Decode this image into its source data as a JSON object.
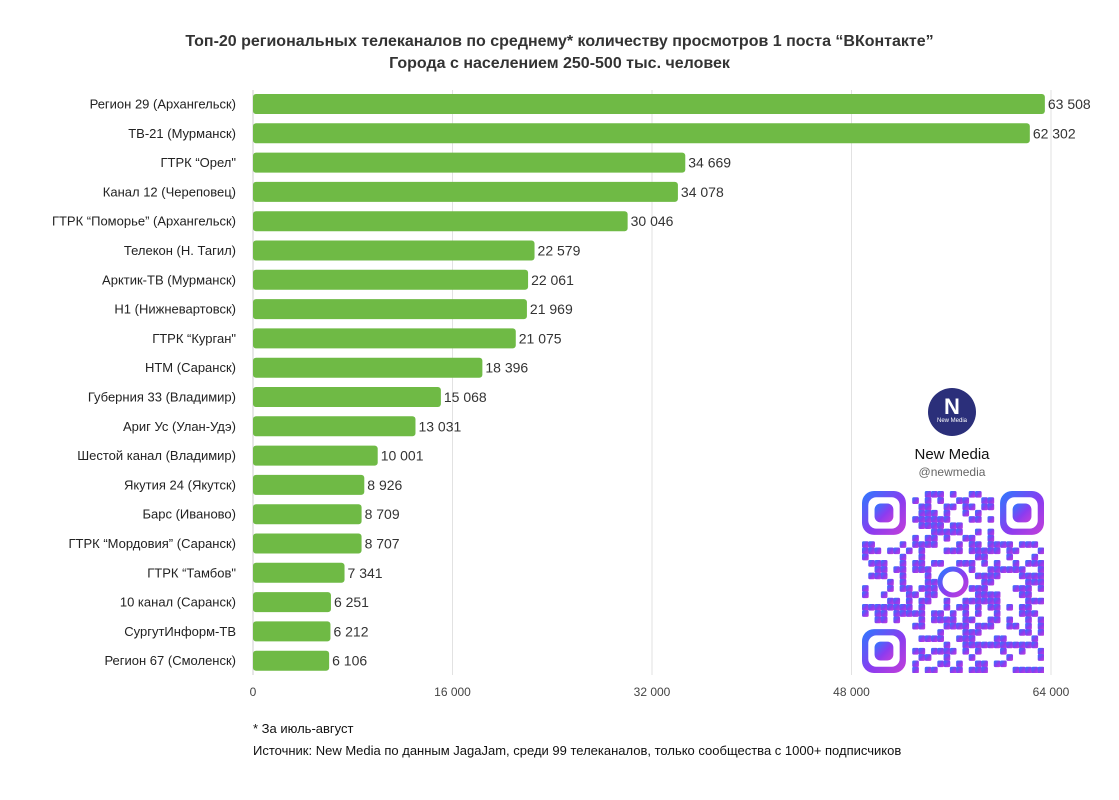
{
  "chart_data": {
    "type": "bar",
    "orientation": "horizontal",
    "title": "Топ-20 региональных телеканалов по среднему* количеству просмотров 1 поста “ВКонтакте”",
    "subtitle": "Города с населением 250-500 тыс. человек",
    "categories": [
      "Регион 29 (Архангельск)",
      "ТВ-21 (Мурманск)",
      "ГТРК “Орел\"",
      "Канал 12 (Череповец)",
      "ГТРК “Поморье” (Архангельск)",
      "Телекон (Н. Тагил)",
      "Арктик-ТВ (Мурманск)",
      "Н1 (Нижневартовск)",
      "ГТРК “Курган\"",
      "НТМ (Саранск)",
      "Губерния 33 (Владимир)",
      "Ариг Ус (Улан-Удэ)",
      "Шестой канал (Владимир)",
      "Якутия 24 (Якутск)",
      "Барс (Иваново)",
      "ГТРК “Мордовия” (Саранск)",
      "ГТРК “Тамбов\"",
      "10 канал (Саранск)",
      "СургутИнформ-ТВ",
      "Регион 67 (Смоленск)"
    ],
    "values": [
      63508,
      62302,
      34669,
      34078,
      30046,
      22579,
      22061,
      21969,
      21075,
      18396,
      15068,
      13031,
      10001,
      8926,
      8709,
      8707,
      7341,
      6251,
      6212,
      6106
    ],
    "value_labels": [
      "63 508",
      "62 302",
      "34 669",
      "34 078",
      "30 046",
      "22 579",
      "22 061",
      "21 969",
      "21 075",
      "18 396",
      "15 068",
      "13 031",
      "10 001",
      "8 926",
      "8 709",
      "8 707",
      "7 341",
      "6 251",
      "6 212",
      "6 106"
    ],
    "xlim": [
      0,
      64000
    ],
    "xticks": [
      0,
      16000,
      32000,
      48000,
      64000
    ],
    "xtick_labels": [
      "0",
      "16 000",
      "32 000",
      "48 000",
      "64 000"
    ],
    "xlabel": "",
    "ylabel": "",
    "grid": "vertical",
    "bar_color": "#6fba45"
  },
  "footnotes": {
    "note": "* За июль-август",
    "source": "Источник: New Media по данным JagaJam, среди 99 телеканалов, только сообщества с 1000+ подписчиков"
  },
  "brand": {
    "logo_letter": "N",
    "logo_sub": "New Media",
    "name": "New Media",
    "handle": "@newmedia",
    "logo_color": "#2b2f7a"
  },
  "qr": {
    "icon": "qr-code-icon",
    "gradient": [
      "#2a7bff",
      "#8a3cf0",
      "#c43fd8"
    ]
  }
}
